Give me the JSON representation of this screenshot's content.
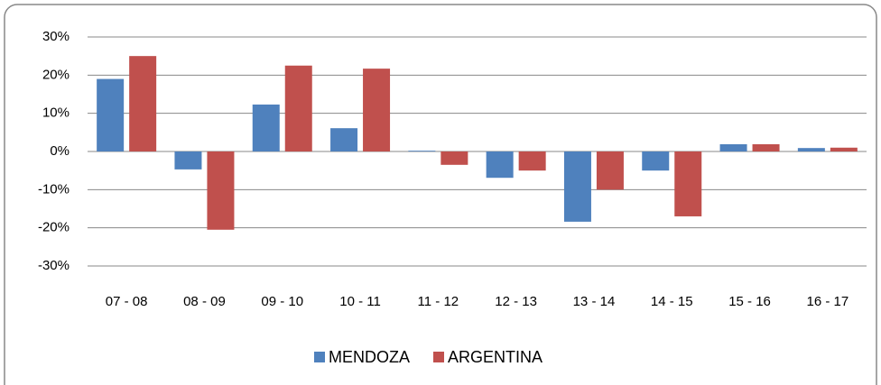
{
  "chart_data": {
    "type": "bar",
    "categories": [
      "07 - 08",
      "08 - 09",
      "09 - 10",
      "10 - 11",
      "11 - 12",
      "12 - 13",
      "13 - 14",
      "14 - 15",
      "15 - 16",
      "16 - 17"
    ],
    "series": [
      {
        "name": "MENDOZA",
        "color": "#4f81bd",
        "values": [
          19,
          -4.7,
          12.3,
          6.1,
          0.2,
          -6.9,
          -18.4,
          -5,
          1.9,
          0.9
        ]
      },
      {
        "name": "ARGENTINA",
        "color": "#c0504d",
        "values": [
          25,
          -20.5,
          22.5,
          21.7,
          -3.5,
          -5,
          -10,
          -17,
          1.9,
          1
        ]
      }
    ],
    "ylim": [
      -30,
      30
    ],
    "yticks": [
      {
        "value": -30,
        "label": "-30%"
      },
      {
        "value": -20,
        "label": "-20%"
      },
      {
        "value": -10,
        "label": "-10%"
      },
      {
        "value": 0,
        "label": "0%"
      },
      {
        "value": 10,
        "label": "10%"
      },
      {
        "value": 20,
        "label": "20%"
      },
      {
        "value": 30,
        "label": "30%"
      }
    ],
    "grid": true,
    "legend": "bottom"
  }
}
